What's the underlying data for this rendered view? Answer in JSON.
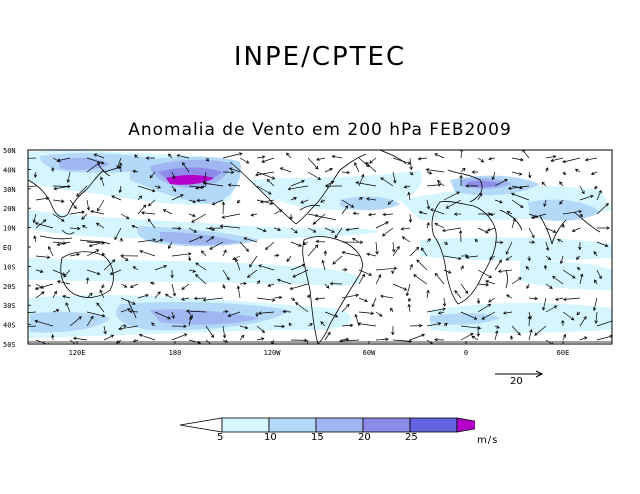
{
  "header": {
    "title": "INPE/CPTEC",
    "subtitle": "Anomalia de Vento em 200 hPa FEB2009"
  },
  "map": {
    "lat_labels": [
      "50N",
      "40N",
      "30N",
      "20N",
      "10N",
      "EQ",
      "10S",
      "20S",
      "30S",
      "40S",
      "50S"
    ],
    "lon_labels": [
      "120E",
      "180",
      "120W",
      "60W",
      "0",
      "60E"
    ],
    "colors": {
      "ocean_bg": "#ffffff",
      "level_5_10": "#d6f6ff",
      "level_10_15": "#b4d8f8",
      "level_15_20": "#a0b6f0",
      "level_20_25": "#8c8ce8",
      "level_25_plus": "#b400c8",
      "coast": "#000000"
    }
  },
  "reference_vector": {
    "label": "20"
  },
  "colorbar": {
    "ticks": [
      "5",
      "10",
      "15",
      "20",
      "25"
    ],
    "units": "m/s",
    "colors": [
      "#ffffff",
      "#d6f6ff",
      "#b4d8f8",
      "#a0b6f0",
      "#8c8ce8",
      "#6464e0",
      "#b400c8"
    ]
  }
}
